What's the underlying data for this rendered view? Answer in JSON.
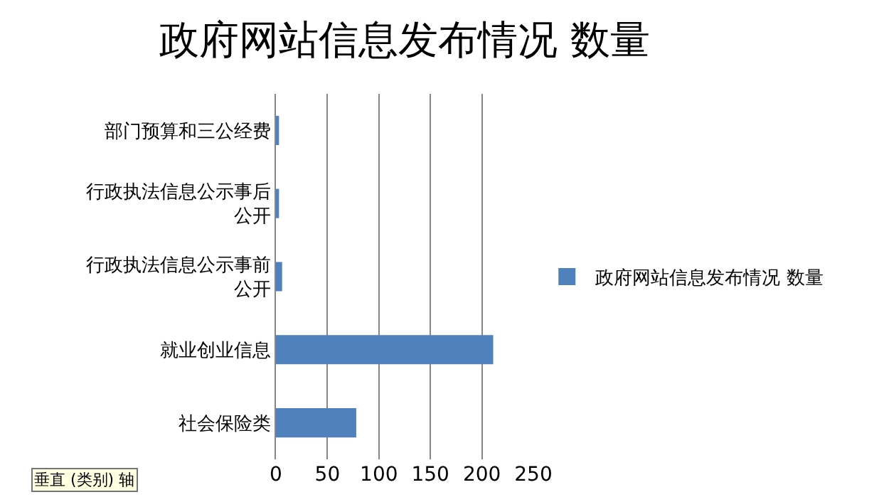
{
  "chart_data": {
    "type": "bar",
    "orientation": "horizontal",
    "title": "政府网站信息发布情况 数量",
    "categories": [
      "部门预算和三公经费",
      "行政执法信息公示事后公开",
      "行政执法信息公示事前公开",
      "就业创业信息",
      "社会保险类"
    ],
    "series": [
      {
        "name": "政府网站信息发布情况 数量",
        "color": "#4f81bd",
        "values": [
          3,
          3,
          6,
          211,
          78
        ]
      }
    ],
    "xlim": [
      0,
      250
    ],
    "xticks": [
      0,
      50,
      100,
      150,
      200,
      250
    ],
    "grid": "x",
    "legend": "right",
    "annotations": [
      "垂直 (类别) 轴"
    ]
  }
}
